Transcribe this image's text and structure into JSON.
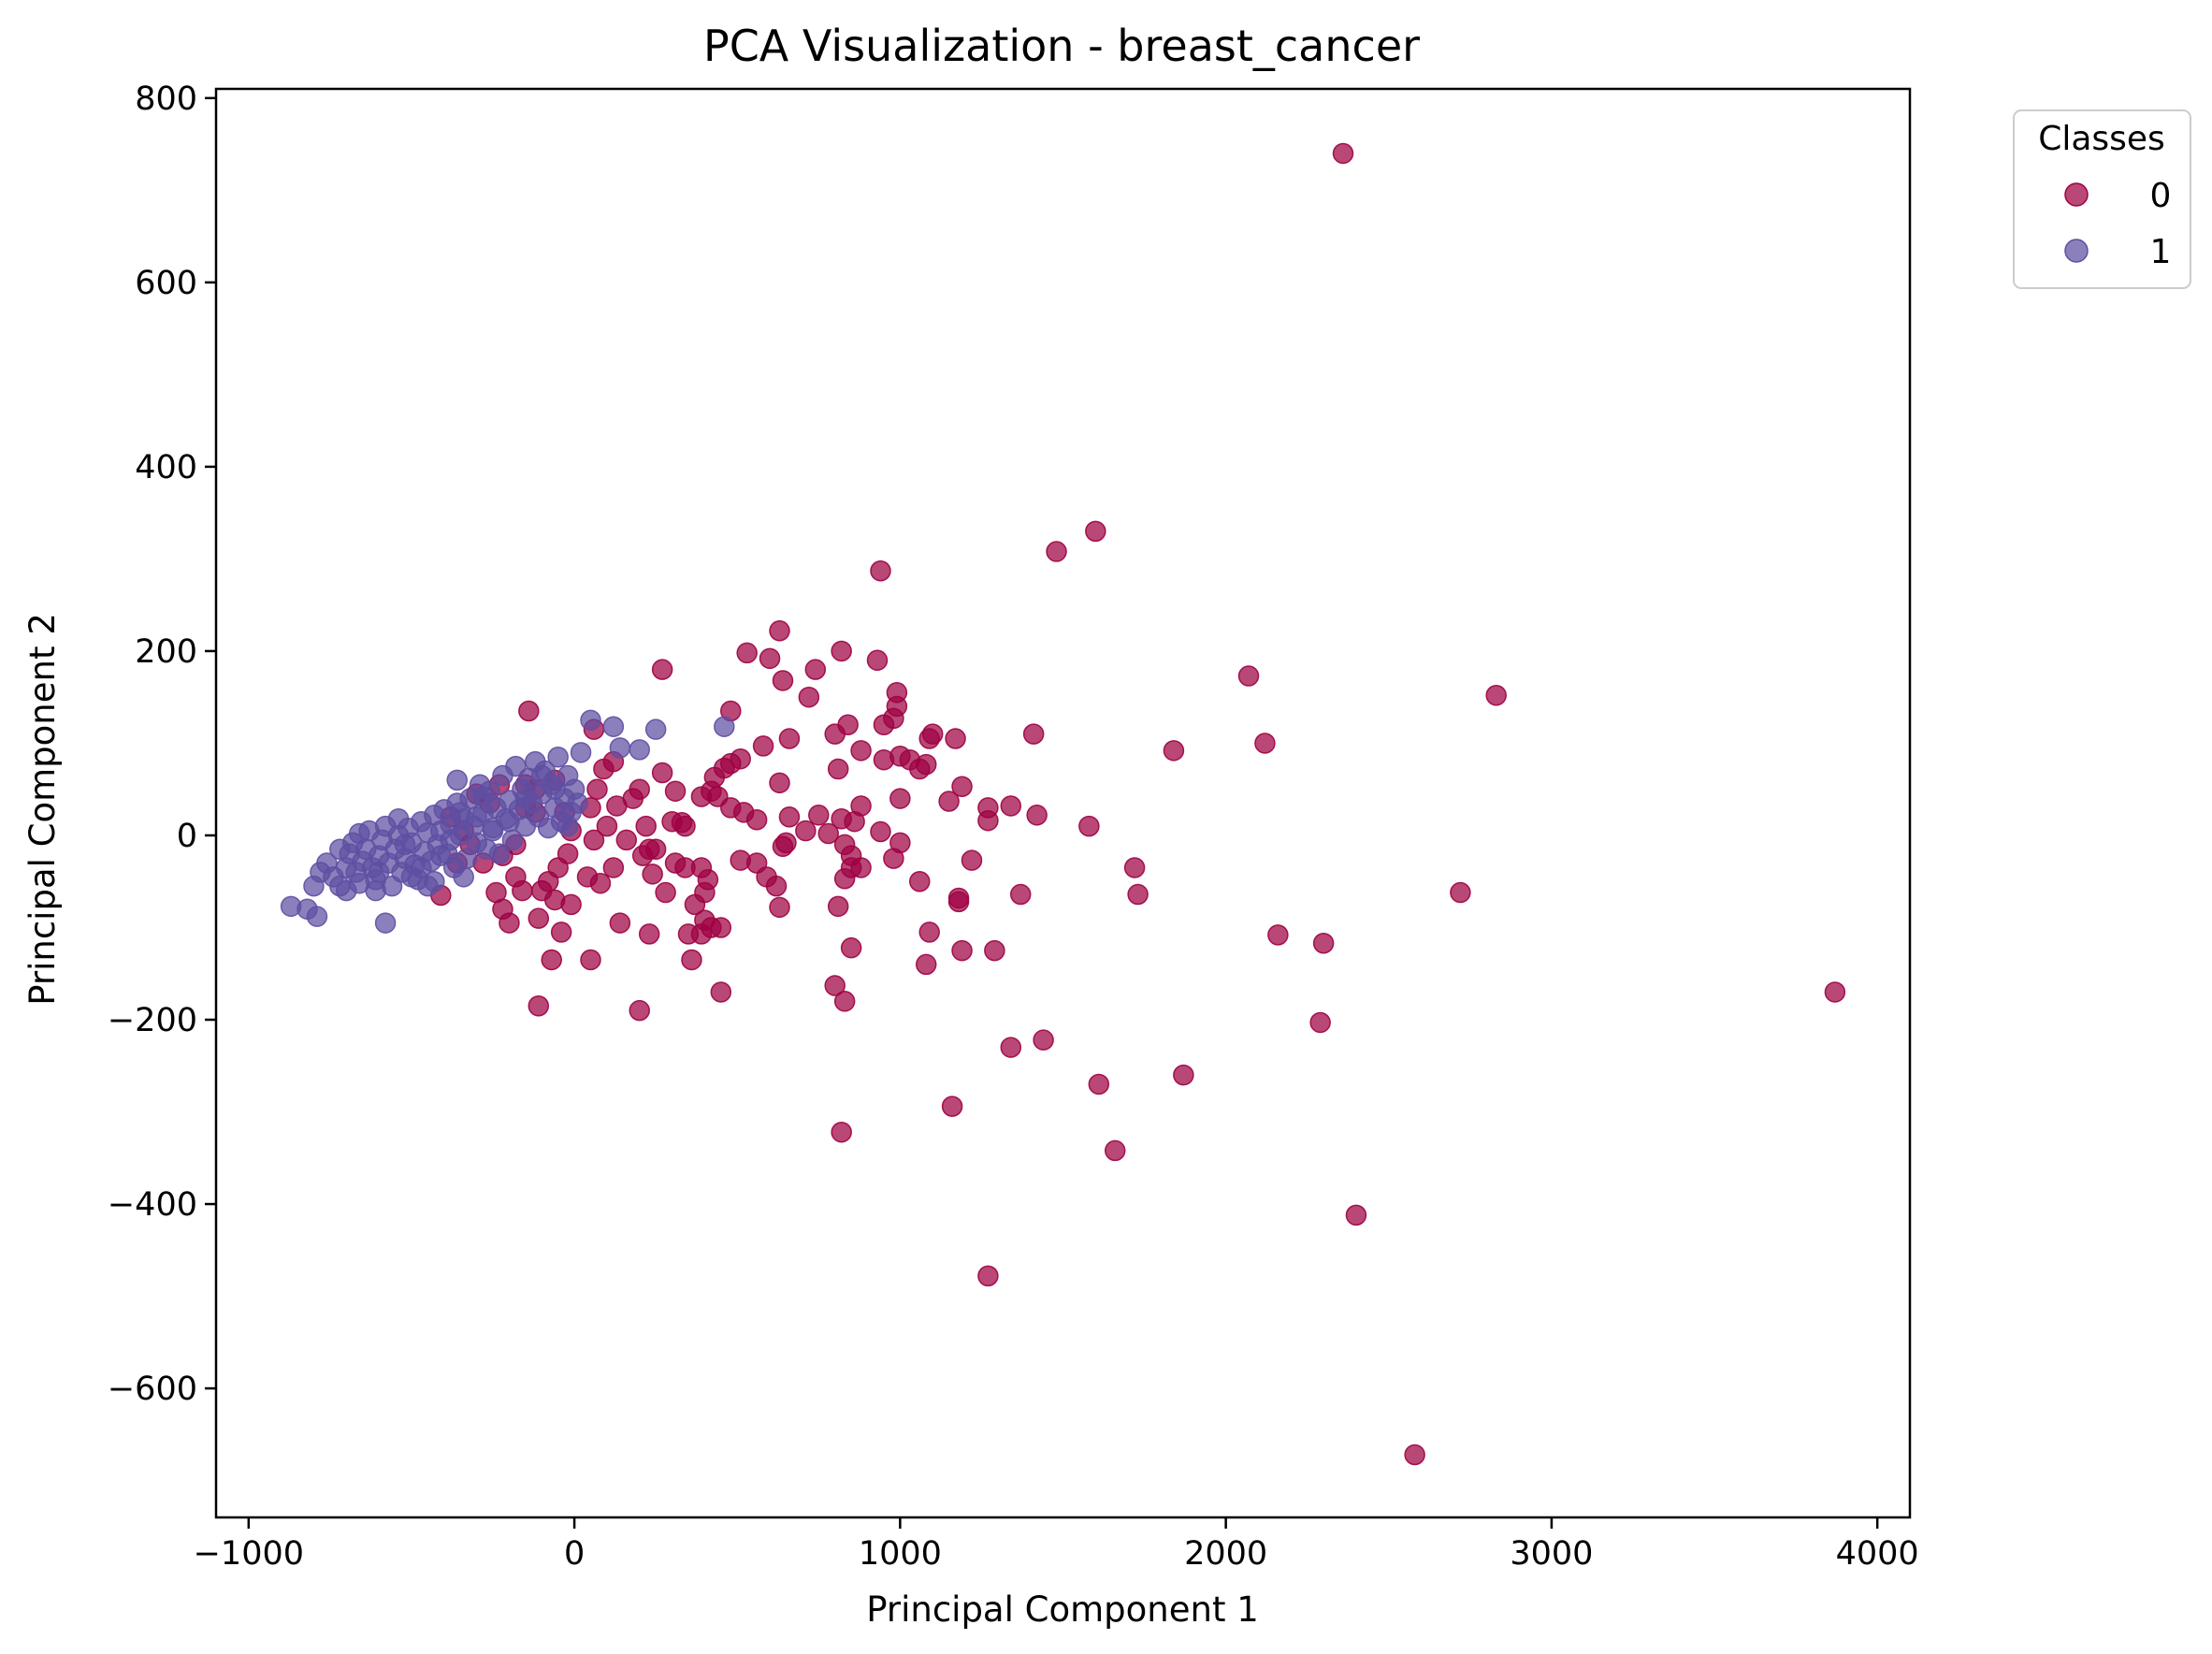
{
  "chart_data": {
    "type": "scatter",
    "title": "PCA Visualization - breast_cancer",
    "xlabel": "Principal Component 1",
    "ylabel": "Principal Component 2",
    "xlim": [
      -1100,
      4100
    ],
    "ylim": [
      -740,
      810
    ],
    "x_ticks": [
      -1000,
      0,
      1000,
      2000,
      3000,
      4000
    ],
    "x_tick_labels": [
      "−1000",
      "0",
      "1000",
      "2000",
      "3000",
      "4000"
    ],
    "y_ticks": [
      -600,
      -400,
      -200,
      0,
      200,
      400,
      600,
      800
    ],
    "y_tick_labels": [
      "−600",
      "−400",
      "−200",
      "0",
      "200",
      "400",
      "600",
      "800"
    ],
    "grid": false,
    "legend": {
      "title": "Classes",
      "placement": "outside-top-right"
    },
    "series": [
      {
        "name": "0",
        "color": "#9e0142",
        "points": [
          [
            2360,
            740
          ],
          [
            1600,
            330
          ],
          [
            1480,
            308
          ],
          [
            940,
            287
          ],
          [
            2070,
            173
          ],
          [
            2830,
            152
          ],
          [
            2120,
            100
          ],
          [
            1840,
            92
          ],
          [
            3870,
            -170
          ],
          [
            2720,
            -62
          ],
          [
            2160,
            -108
          ],
          [
            2300,
            -117
          ],
          [
            2290,
            -203
          ],
          [
            1580,
            10
          ],
          [
            1410,
            110
          ],
          [
            1420,
            22
          ],
          [
            1340,
            32
          ],
          [
            1340,
            -230
          ],
          [
            1440,
            -222
          ],
          [
            1610,
            -270
          ],
          [
            1660,
            -342
          ],
          [
            1870,
            -260
          ],
          [
            2400,
            -412
          ],
          [
            2580,
            -672
          ],
          [
            1270,
            -478
          ],
          [
            1160,
            -294
          ],
          [
            820,
            -322
          ],
          [
            1720,
            -35
          ],
          [
            1730,
            -64
          ],
          [
            1370,
            -64
          ],
          [
            1290,
            -125
          ],
          [
            1190,
            -125
          ],
          [
            1270,
            30
          ],
          [
            1270,
            16
          ],
          [
            1190,
            53
          ],
          [
            1150,
            37
          ],
          [
            1170,
            105
          ],
          [
            1100,
            110
          ],
          [
            1090,
            105
          ],
          [
            1080,
            77
          ],
          [
            1060,
            72
          ],
          [
            1030,
            82
          ],
          [
            1000,
            86
          ],
          [
            990,
            155
          ],
          [
            990,
            140
          ],
          [
            980,
            127
          ],
          [
            950,
            120
          ],
          [
            950,
            82
          ],
          [
            1000,
            40
          ],
          [
            940,
            4
          ],
          [
            980,
            -25
          ],
          [
            1000,
            -8
          ],
          [
            1060,
            -50
          ],
          [
            1090,
            -105
          ],
          [
            1080,
            -140
          ],
          [
            1180,
            -72
          ],
          [
            1180,
            -68
          ],
          [
            1220,
            -27
          ],
          [
            630,
            222
          ],
          [
            640,
            168
          ],
          [
            600,
            192
          ],
          [
            530,
            198
          ],
          [
            930,
            190
          ],
          [
            740,
            180
          ],
          [
            720,
            150
          ],
          [
            820,
            200
          ],
          [
            270,
            180
          ],
          [
            480,
            135
          ],
          [
            510,
            83
          ],
          [
            480,
            78
          ],
          [
            460,
            73
          ],
          [
            430,
            63
          ],
          [
            420,
            48
          ],
          [
            390,
            42
          ],
          [
            440,
            42
          ],
          [
            480,
            30
          ],
          [
            520,
            25
          ],
          [
            560,
            17
          ],
          [
            580,
            97
          ],
          [
            630,
            57
          ],
          [
            660,
            105
          ],
          [
            710,
            5
          ],
          [
            750,
            22
          ],
          [
            780,
            2
          ],
          [
            800,
            110
          ],
          [
            840,
            120
          ],
          [
            880,
            92
          ],
          [
            810,
            72
          ],
          [
            820,
            18
          ],
          [
            860,
            15
          ],
          [
            830,
            -10
          ],
          [
            850,
            -22
          ],
          [
            850,
            -35
          ],
          [
            880,
            32
          ],
          [
            880,
            -35
          ],
          [
            830,
            -47
          ],
          [
            810,
            -77
          ],
          [
            850,
            -122
          ],
          [
            800,
            -163
          ],
          [
            830,
            -180
          ],
          [
            660,
            20
          ],
          [
            650,
            -8
          ],
          [
            640,
            -12
          ],
          [
            560,
            -30
          ],
          [
            590,
            -45
          ],
          [
            620,
            -55
          ],
          [
            630,
            -78
          ],
          [
            510,
            -27
          ],
          [
            400,
            -62
          ],
          [
            410,
            -48
          ],
          [
            390,
            -35
          ],
          [
            370,
            -75
          ],
          [
            350,
            -107
          ],
          [
            390,
            -107
          ],
          [
            420,
            -100
          ],
          [
            450,
            -100
          ],
          [
            400,
            -92
          ],
          [
            360,
            -135
          ],
          [
            450,
            -170
          ],
          [
            280,
            -62
          ],
          [
            240,
            -42
          ],
          [
            230,
            -15
          ],
          [
            220,
            10
          ],
          [
            200,
            50
          ],
          [
            270,
            68
          ],
          [
            310,
            48
          ],
          [
            330,
            14
          ],
          [
            340,
            10
          ],
          [
            300,
            15
          ],
          [
            310,
            -30
          ],
          [
            340,
            -35
          ],
          [
            250,
            -15
          ],
          [
            230,
            -107
          ],
          [
            200,
            -190
          ],
          [
            140,
            -95
          ],
          [
            120,
            -35
          ],
          [
            80,
            -52
          ],
          [
            40,
            -45
          ],
          [
            60,
            -5
          ],
          [
            100,
            10
          ],
          [
            130,
            32
          ],
          [
            70,
            50
          ],
          [
            50,
            30
          ],
          [
            90,
            72
          ],
          [
            120,
            80
          ],
          [
            60,
            115
          ],
          [
            -30,
            25
          ],
          [
            -10,
            5
          ],
          [
            -20,
            -20
          ],
          [
            -50,
            -35
          ],
          [
            -80,
            -50
          ],
          [
            -60,
            -70
          ],
          [
            -100,
            -60
          ],
          [
            -110,
            -90
          ],
          [
            -10,
            -75
          ],
          [
            -40,
            -105
          ],
          [
            -70,
            -135
          ],
          [
            -110,
            -185
          ],
          [
            -140,
            135
          ],
          [
            -160,
            -60
          ],
          [
            -180,
            -45
          ],
          [
            -200,
            -95
          ],
          [
            -220,
            -80
          ],
          [
            -240,
            -62
          ],
          [
            -220,
            -22
          ],
          [
            -180,
            -10
          ],
          [
            -150,
            30
          ],
          [
            -120,
            25
          ],
          [
            -280,
            -30
          ],
          [
            -320,
            -10
          ],
          [
            -340,
            5
          ],
          [
            -360,
            -30
          ],
          [
            -410,
            -65
          ],
          [
            -380,
            20
          ],
          [
            -300,
            45
          ],
          [
            -260,
            35
          ],
          [
            -230,
            55
          ],
          [
            -150,
            55
          ],
          [
            -120,
            50
          ],
          [
            -60,
            60
          ],
          [
            50,
            -135
          ],
          [
            210,
            -22
          ],
          [
            160,
            -5
          ],
          [
            180,
            40
          ]
        ]
      },
      {
        "name": "1",
        "color": "#5e4fa2",
        "points": [
          [
            -870,
            -77
          ],
          [
            -820,
            -80
          ],
          [
            -790,
            -88
          ],
          [
            -800,
            -55
          ],
          [
            -780,
            -40
          ],
          [
            -760,
            -30
          ],
          [
            -740,
            -45
          ],
          [
            -720,
            -55
          ],
          [
            -700,
            -35
          ],
          [
            -700,
            -60
          ],
          [
            -690,
            -20
          ],
          [
            -680,
            -8
          ],
          [
            -670,
            -40
          ],
          [
            -660,
            -52
          ],
          [
            -650,
            -28
          ],
          [
            -640,
            -15
          ],
          [
            -630,
            5
          ],
          [
            -620,
            -35
          ],
          [
            -610,
            -48
          ],
          [
            -600,
            -22
          ],
          [
            -590,
            -5
          ],
          [
            -580,
            10
          ],
          [
            -570,
            -30
          ],
          [
            -560,
            -55
          ],
          [
            -550,
            -15
          ],
          [
            -540,
            0
          ],
          [
            -530,
            -40
          ],
          [
            -520,
            -25
          ],
          [
            -510,
            8
          ],
          [
            -500,
            -8
          ],
          [
            -490,
            -32
          ],
          [
            -480,
            -48
          ],
          [
            -470,
            15
          ],
          [
            -460,
            -18
          ],
          [
            -450,
            3
          ],
          [
            -440,
            -28
          ],
          [
            -430,
            22
          ],
          [
            -420,
            -10
          ],
          [
            -410,
            5
          ],
          [
            -400,
            28
          ],
          [
            -390,
            -20
          ],
          [
            -380,
            12
          ],
          [
            -370,
            -35
          ],
          [
            -360,
            35
          ],
          [
            -350,
            0
          ],
          [
            -340,
            18
          ],
          [
            -330,
            -25
          ],
          [
            -320,
            40
          ],
          [
            -310,
            10
          ],
          [
            -300,
            -8
          ],
          [
            -290,
            55
          ],
          [
            -280,
            25
          ],
          [
            -270,
            -15
          ],
          [
            -260,
            48
          ],
          [
            -250,
            8
          ],
          [
            -240,
            30
          ],
          [
            -230,
            -20
          ],
          [
            -220,
            65
          ],
          [
            -210,
            18
          ],
          [
            -200,
            38
          ],
          [
            -190,
            -5
          ],
          [
            -180,
            75
          ],
          [
            -170,
            28
          ],
          [
            -160,
            50
          ],
          [
            -150,
            10
          ],
          [
            -140,
            62
          ],
          [
            -130,
            35
          ],
          [
            -120,
            80
          ],
          [
            -110,
            20
          ],
          [
            -100,
            45
          ],
          [
            -90,
            70
          ],
          [
            -80,
            8
          ],
          [
            -70,
            55
          ],
          [
            -60,
            30
          ],
          [
            -50,
            85
          ],
          [
            -40,
            15
          ],
          [
            -30,
            40
          ],
          [
            -20,
            65
          ],
          [
            -10,
            25
          ],
          [
            0,
            50
          ],
          [
            10,
            35
          ],
          [
            20,
            90
          ],
          [
            50,
            125
          ],
          [
            120,
            118
          ],
          [
            140,
            95
          ],
          [
            200,
            93
          ],
          [
            250,
            115
          ],
          [
            460,
            118
          ],
          [
            -360,
            60
          ],
          [
            -580,
            -95
          ],
          [
            -610,
            -60
          ],
          [
            -430,
            -50
          ],
          [
            -340,
            -45
          ],
          [
            -600,
            -40
          ],
          [
            -500,
            -45
          ],
          [
            -720,
            -15
          ],
          [
            -660,
            2
          ],
          [
            -540,
            18
          ],
          [
            -450,
            -55
          ],
          [
            -380,
            -5
          ],
          [
            -300,
            20
          ],
          [
            -250,
            5
          ],
          [
            -200,
            15
          ],
          [
            -150,
            40
          ],
          [
            -100,
            65
          ],
          [
            -60,
            50
          ],
          [
            -20,
            10
          ],
          [
            -470,
            -35
          ],
          [
            -410,
            -22
          ],
          [
            -520,
            -10
          ],
          [
            -350,
            25
          ],
          [
            -280,
            42
          ]
        ]
      }
    ]
  }
}
